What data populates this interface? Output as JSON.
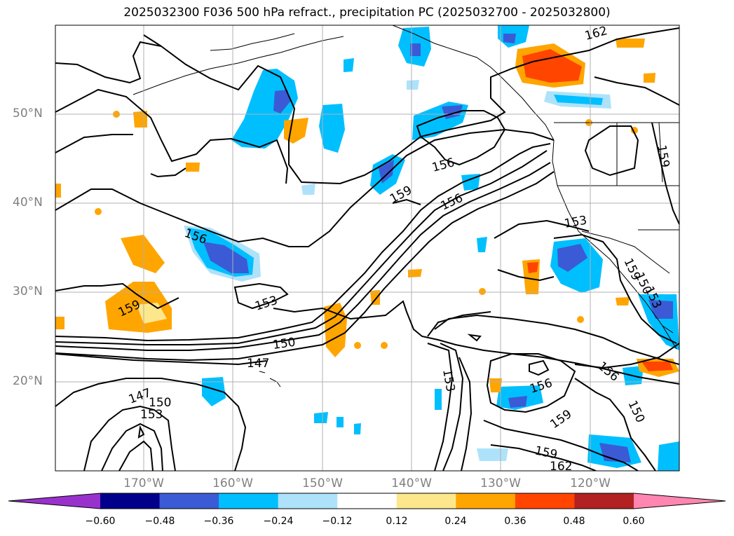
{
  "title": "2025032300 F036 500 hPa refract., precipitation PC (2025032700 - 2025032800)",
  "map": {
    "latitude_labels": [
      "50°N",
      "40°N",
      "30°N",
      "20°N"
    ],
    "longitude_labels": [
      "170°W",
      "160°W",
      "150°W",
      "140°W",
      "130°W",
      "120°W"
    ],
    "contour_labels": [
      "162",
      "159",
      "156",
      "159",
      "156",
      "153",
      "156",
      "153",
      "159",
      "150",
      "147",
      "147",
      "150",
      "153",
      "153",
      "156",
      "159",
      "159",
      "162",
      "156",
      "150",
      "159",
      "150",
      "153"
    ]
  },
  "colorbar": {
    "tick_labels": [
      "−0.60",
      "−0.48",
      "−0.36",
      "−0.24",
      "−0.12",
      "0.12",
      "0.24",
      "0.36",
      "0.48",
      "0.60"
    ],
    "colors": [
      "#9932cc",
      "#00008b",
      "#3b5bd6",
      "#00bfff",
      "#aee2fa",
      "#ffffff",
      "#fce78c",
      "#ffa500",
      "#ff4500",
      "#b22222",
      "#ff86b0"
    ]
  }
}
